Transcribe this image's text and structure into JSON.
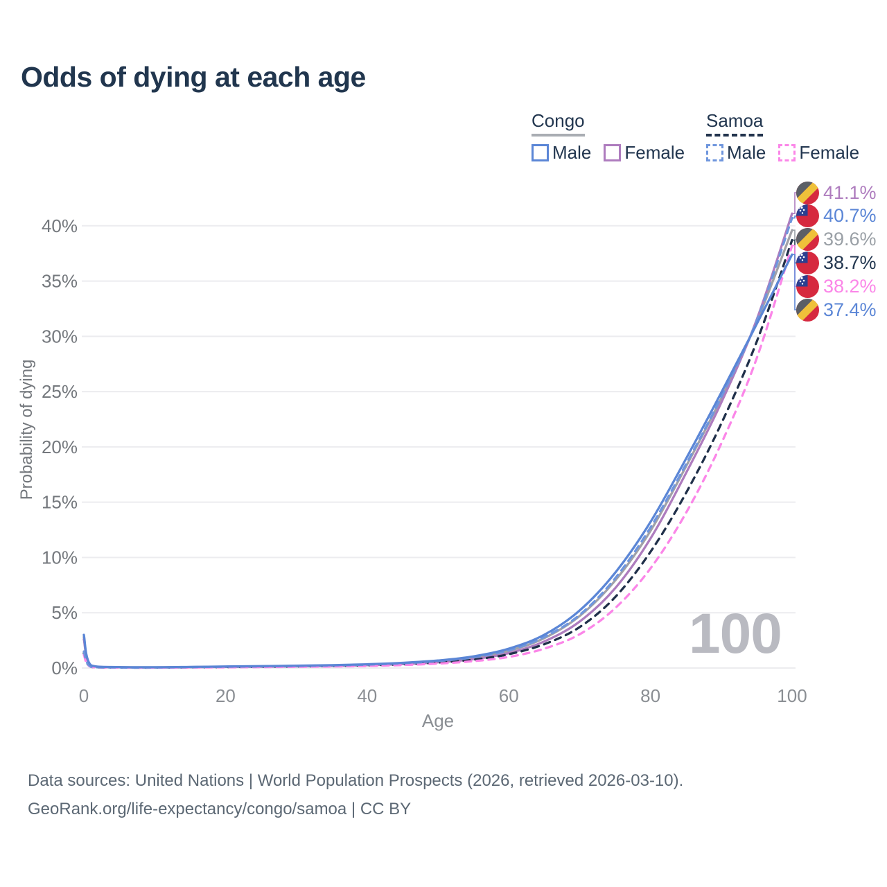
{
  "page": {
    "title": "Odds of dying at each age"
  },
  "legend": {
    "groups": [
      {
        "label": "Congo",
        "line_style": "solid",
        "underline_color": "#a9adb3",
        "items": [
          {
            "label": "Male",
            "color": "#5b86d6",
            "dashed": false
          },
          {
            "label": "Female",
            "color": "#ae7cbe",
            "dashed": false
          }
        ]
      },
      {
        "label": "Samoa",
        "line_style": "dashed",
        "underline_color": "#22334d",
        "items": [
          {
            "label": "Male",
            "color": "#6f96dd",
            "dashed": true
          },
          {
            "label": "Female",
            "color": "#fb86e8",
            "dashed": true
          }
        ]
      }
    ]
  },
  "chart_data": {
    "type": "line",
    "title": "Odds of dying at each age",
    "xlabel": "Age",
    "ylabel": "Probability of dying",
    "xlim": [
      0,
      100
    ],
    "ylim_percent": [
      0,
      43
    ],
    "x_ticks": [
      0,
      20,
      40,
      60,
      80,
      100
    ],
    "y_tick_labels": [
      "0%",
      "5%",
      "10%",
      "15%",
      "20%",
      "25%",
      "30%",
      "35%",
      "40%"
    ],
    "grid": "horizontal-only",
    "legend_position": "top-right",
    "watermark": "100",
    "x": [
      0,
      1,
      5,
      10,
      15,
      20,
      25,
      30,
      35,
      40,
      45,
      50,
      55,
      60,
      65,
      70,
      75,
      80,
      85,
      90,
      95,
      100
    ],
    "series": [
      {
        "name": "Congo Male",
        "country": "Congo",
        "sex": "male",
        "color": "#5b86d6",
        "dashed": false,
        "values_percent": [
          3.0,
          0.25,
          0.09,
          0.07,
          0.1,
          0.14,
          0.17,
          0.21,
          0.26,
          0.34,
          0.47,
          0.68,
          1.05,
          1.75,
          3.0,
          5.2,
          8.6,
          13.2,
          18.9,
          24.9,
          31.1,
          37.4
        ]
      },
      {
        "name": "Congo Female",
        "country": "Congo",
        "sex": "female",
        "color": "#ae7cbe",
        "dashed": false,
        "values_percent": [
          2.6,
          0.21,
          0.07,
          0.05,
          0.07,
          0.1,
          0.12,
          0.15,
          0.19,
          0.26,
          0.35,
          0.52,
          0.8,
          1.35,
          2.4,
          4.2,
          7.2,
          11.7,
          17.6,
          24.0,
          31.5,
          41.1
        ]
      },
      {
        "name": "Congo",
        "country": "Congo",
        "sex": "both",
        "color": "#a1a1a7",
        "dashed": false,
        "values_percent": [
          2.8,
          0.23,
          0.08,
          0.06,
          0.09,
          0.12,
          0.15,
          0.18,
          0.23,
          0.3,
          0.41,
          0.6,
          0.92,
          1.55,
          2.7,
          4.7,
          7.9,
          12.4,
          18.2,
          24.4,
          31.3,
          39.6
        ]
      },
      {
        "name": "Samoa Male",
        "country": "Samoa",
        "sex": "male",
        "color": "#6f96dd",
        "dashed": true,
        "values_percent": [
          1.5,
          0.12,
          0.05,
          0.05,
          0.08,
          0.12,
          0.15,
          0.19,
          0.24,
          0.31,
          0.43,
          0.63,
          0.97,
          1.6,
          2.8,
          4.8,
          8.1,
          12.7,
          18.4,
          24.5,
          31.4,
          40.7
        ]
      },
      {
        "name": "Samoa Female",
        "country": "Samoa",
        "sex": "female",
        "color": "#fb86e8",
        "dashed": true,
        "values_percent": [
          1.2,
          0.1,
          0.04,
          0.03,
          0.05,
          0.07,
          0.09,
          0.11,
          0.14,
          0.19,
          0.27,
          0.4,
          0.62,
          1.0,
          1.75,
          3.05,
          5.4,
          9.0,
          14.0,
          20.3,
          28.0,
          38.2
        ]
      },
      {
        "name": "Samoa",
        "country": "Samoa",
        "sex": "both",
        "color": "#20304a",
        "dashed": true,
        "values_percent": [
          1.35,
          0.11,
          0.045,
          0.04,
          0.06,
          0.09,
          0.11,
          0.14,
          0.18,
          0.24,
          0.33,
          0.49,
          0.75,
          1.25,
          2.15,
          3.7,
          6.4,
          10.5,
          15.8,
          22.1,
          29.5,
          38.7
        ]
      }
    ],
    "end_labels": [
      {
        "value": "41.1%",
        "series": "Congo Female",
        "series_index": 1,
        "flag": "congo",
        "color": "#ae7cbe"
      },
      {
        "value": "40.7%",
        "series": "Samoa Male",
        "series_index": 3,
        "flag": "samoa",
        "color": "#5b86d6"
      },
      {
        "value": "39.6%",
        "series": "Congo",
        "series_index": 2,
        "flag": "congo",
        "color": "#9aa0a6"
      },
      {
        "value": "38.7%",
        "series": "Samoa",
        "series_index": 5,
        "flag": "samoa",
        "color": "#22364f"
      },
      {
        "value": "38.2%",
        "series": "Samoa Female",
        "series_index": 4,
        "flag": "samoa",
        "color": "#fb86e8"
      },
      {
        "value": "37.4%",
        "series": "Congo Male",
        "series_index": 0,
        "flag": "congo",
        "color": "#5b86d6"
      }
    ],
    "flag_colors": {
      "congo": {
        "green_band": "#5b5f66",
        "yellow_band": "#efc13a",
        "red_band": "#d6293f"
      },
      "samoa": {
        "field_red": "#d6293f",
        "canton_blue": "#2b3f90",
        "stars": "#ffffff"
      }
    }
  },
  "footer": {
    "line1": "Data sources: United Nations | World Population Prospects (2026, retrieved 2026-03-10).",
    "line2": "GeoRank.org/life-expectancy/congo/samoa | CC BY"
  }
}
